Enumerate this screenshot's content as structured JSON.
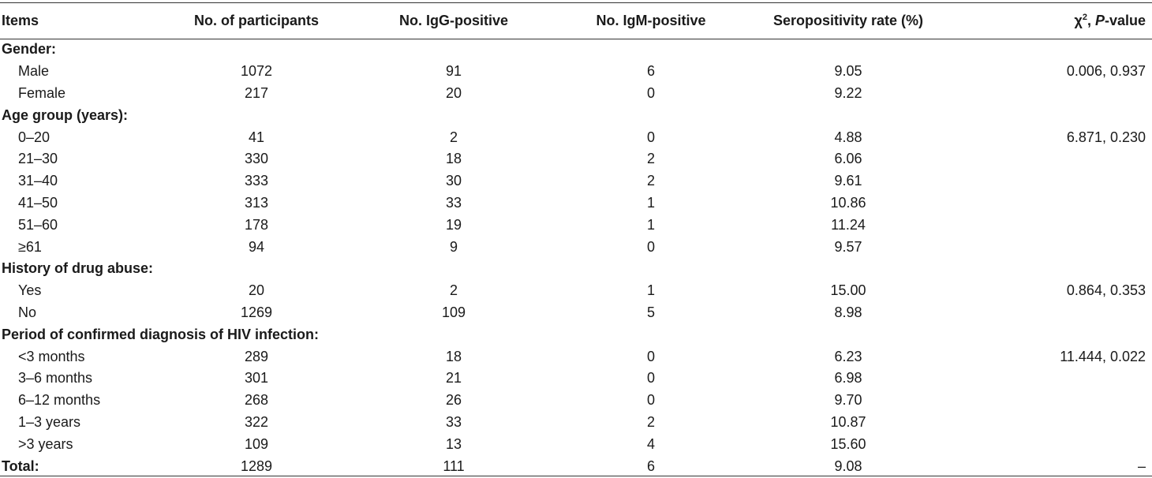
{
  "table": {
    "headers": {
      "items": "Items",
      "participants": "No. of participants",
      "igg": "No. IgG-positive",
      "igm": "No. IgM-positive",
      "rate": "Seropositivity rate (%)",
      "chi_symbol": "χ",
      "chi_sup": "2",
      "chi_sep": ", ",
      "chi_p": "P",
      "chi_suffix": "-value"
    },
    "groups": [
      {
        "label": "Gender:",
        "rows": [
          {
            "label": "Male",
            "participants": "1072",
            "igg": "91",
            "igm": "6",
            "rate": "9.05",
            "stat": "0.006, 0.937"
          },
          {
            "label": "Female",
            "participants": "217",
            "igg": "20",
            "igm": "0",
            "rate": "9.22",
            "stat": ""
          }
        ]
      },
      {
        "label": "Age group (years):",
        "rows": [
          {
            "label": "0–20",
            "participants": "41",
            "igg": "2",
            "igm": "0",
            "rate": "4.88",
            "stat": "6.871, 0.230"
          },
          {
            "label": "21–30",
            "participants": "330",
            "igg": "18",
            "igm": "2",
            "rate": "6.06",
            "stat": ""
          },
          {
            "label": "31–40",
            "participants": "333",
            "igg": "30",
            "igm": "2",
            "rate": "9.61",
            "stat": ""
          },
          {
            "label": "41–50",
            "participants": "313",
            "igg": "33",
            "igm": "1",
            "rate": "10.86",
            "stat": ""
          },
          {
            "label": "51–60",
            "participants": "178",
            "igg": "19",
            "igm": "1",
            "rate": "11.24",
            "stat": ""
          },
          {
            "label": "≥61",
            "participants": "94",
            "igg": "9",
            "igm": "0",
            "rate": "9.57",
            "stat": ""
          }
        ]
      },
      {
        "label": "History of drug abuse:",
        "rows": [
          {
            "label": "Yes",
            "participants": "20",
            "igg": "2",
            "igm": "1",
            "rate": "15.00",
            "stat": "0.864, 0.353"
          },
          {
            "label": "No",
            "participants": "1269",
            "igg": "109",
            "igm": "5",
            "rate": "8.98",
            "stat": ""
          }
        ]
      },
      {
        "label": "Period of confirmed diagnosis of HIV infection:",
        "rows": [
          {
            "label": "<3 months",
            "participants": "289",
            "igg": "18",
            "igm": "0",
            "rate": "6.23",
            "stat": "11.444, 0.022"
          },
          {
            "label": "3–6 months",
            "participants": "301",
            "igg": "21",
            "igm": "0",
            "rate": "6.98",
            "stat": ""
          },
          {
            "label": "6–12 months",
            "participants": "268",
            "igg": "26",
            "igm": "0",
            "rate": "9.70",
            "stat": ""
          },
          {
            "label": "1–3 years",
            "participants": "322",
            "igg": "33",
            "igm": "2",
            "rate": "10.87",
            "stat": ""
          },
          {
            "label": ">3 years",
            "participants": "109",
            "igg": "13",
            "igm": "4",
            "rate": "15.60",
            "stat": ""
          }
        ]
      }
    ],
    "total": {
      "label": "Total:",
      "participants": "1289",
      "igg": "111",
      "igm": "6",
      "rate": "9.08",
      "stat": "–"
    }
  }
}
